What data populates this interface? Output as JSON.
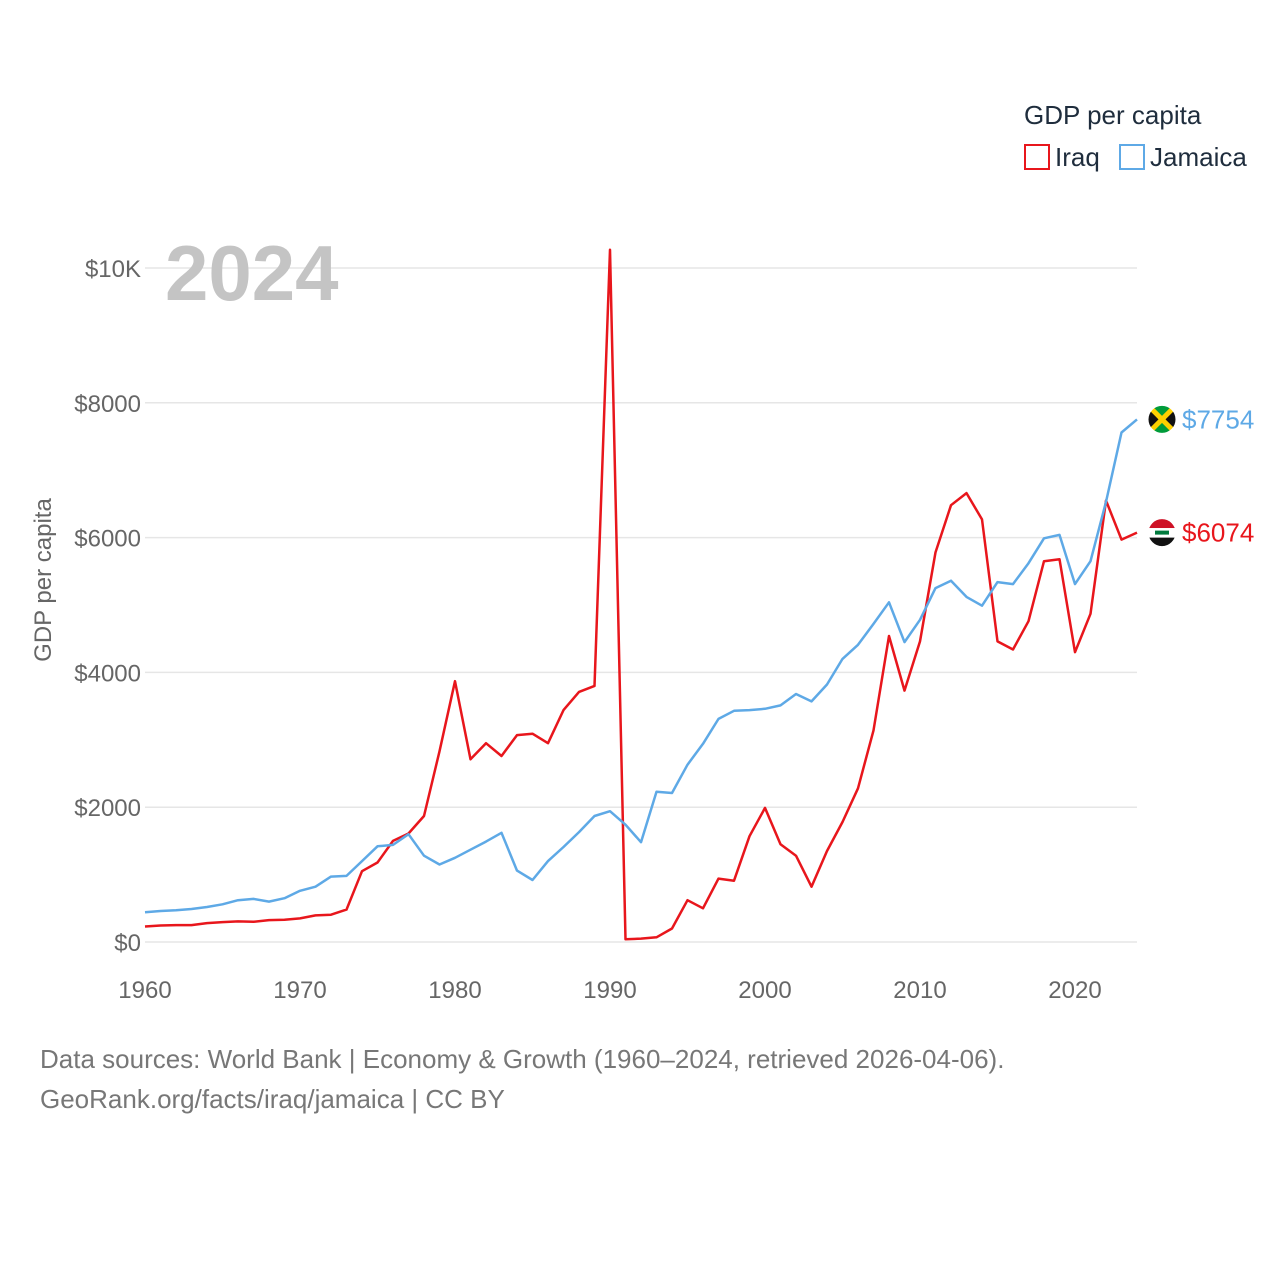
{
  "chart_data": {
    "type": "line",
    "title": "GDP per capita",
    "ylabel": "GDP per capita",
    "xlabel": "",
    "year_label": "2024",
    "xlim": [
      1960,
      2024
    ],
    "ylim": [
      0,
      10000
    ],
    "x_ticks": [
      1960,
      1970,
      1980,
      1990,
      2000,
      2010,
      2020
    ],
    "y_ticks": [
      {
        "value": 0,
        "label": "$0"
      },
      {
        "value": 2000,
        "label": "$2000"
      },
      {
        "value": 4000,
        "label": "$4000"
      },
      {
        "value": 6000,
        "label": "$6000"
      },
      {
        "value": 8000,
        "label": "$8000"
      },
      {
        "value": 10000,
        "label": "$10K"
      }
    ],
    "legend": {
      "title": "GDP per capita",
      "position": "top-right"
    },
    "x": [
      1960,
      1961,
      1962,
      1963,
      1964,
      1965,
      1966,
      1967,
      1968,
      1969,
      1970,
      1971,
      1972,
      1973,
      1974,
      1975,
      1976,
      1977,
      1978,
      1979,
      1980,
      1981,
      1982,
      1983,
      1984,
      1985,
      1986,
      1987,
      1988,
      1989,
      1990,
      1991,
      1992,
      1993,
      1994,
      1995,
      1996,
      1997,
      1998,
      1999,
      2000,
      2001,
      2002,
      2003,
      2004,
      2005,
      2006,
      2007,
      2008,
      2009,
      2010,
      2011,
      2012,
      2013,
      2014,
      2015,
      2016,
      2017,
      2018,
      2019,
      2020,
      2021,
      2022,
      2023,
      2024
    ],
    "series": [
      {
        "name": "Iraq",
        "color": "#e8161c",
        "end_label": "$6074",
        "flag": "iraq-flag",
        "values": [
          230,
          245,
          250,
          250,
          280,
          295,
          305,
          300,
          325,
          330,
          350,
          395,
          405,
          480,
          1050,
          1180,
          1500,
          1610,
          1870,
          2830,
          3870,
          2710,
          2950,
          2760,
          3070,
          3090,
          2950,
          3440,
          3710,
          3800,
          10270,
          40,
          50,
          70,
          200,
          620,
          500,
          940,
          910,
          1570,
          1990,
          1450,
          1280,
          820,
          1350,
          1780,
          2280,
          3140,
          4540,
          3730,
          4460,
          5780,
          6480,
          6660,
          6270,
          4460,
          4340,
          4760,
          5650,
          5680,
          4300,
          4870,
          6550,
          5970,
          6074
        ]
      },
      {
        "name": "Jamaica",
        "color": "#5ea9e6",
        "end_label": "$7754",
        "flag": "jamaica-flag",
        "values": [
          440,
          460,
          470,
          490,
          520,
          560,
          620,
          640,
          600,
          650,
          760,
          820,
          970,
          980,
          1200,
          1420,
          1440,
          1600,
          1280,
          1150,
          1250,
          1370,
          1490,
          1620,
          1060,
          920,
          1200,
          1410,
          1630,
          1870,
          1940,
          1740,
          1480,
          2230,
          2210,
          2630,
          2940,
          3310,
          3430,
          3440,
          3460,
          3510,
          3680,
          3570,
          3820,
          4200,
          4410,
          4720,
          5040,
          4450,
          4780,
          5250,
          5360,
          5120,
          4990,
          5340,
          5310,
          5620,
          5990,
          6040,
          5310,
          5650,
          6530,
          7560,
          7754
        ]
      }
    ]
  },
  "footer": {
    "line1": "Data sources: World Bank | Economy & Growth (1960–2024, retrieved 2026-04-06).",
    "line2": "GeoRank.org/facts/iraq/jamaica | CC BY"
  }
}
